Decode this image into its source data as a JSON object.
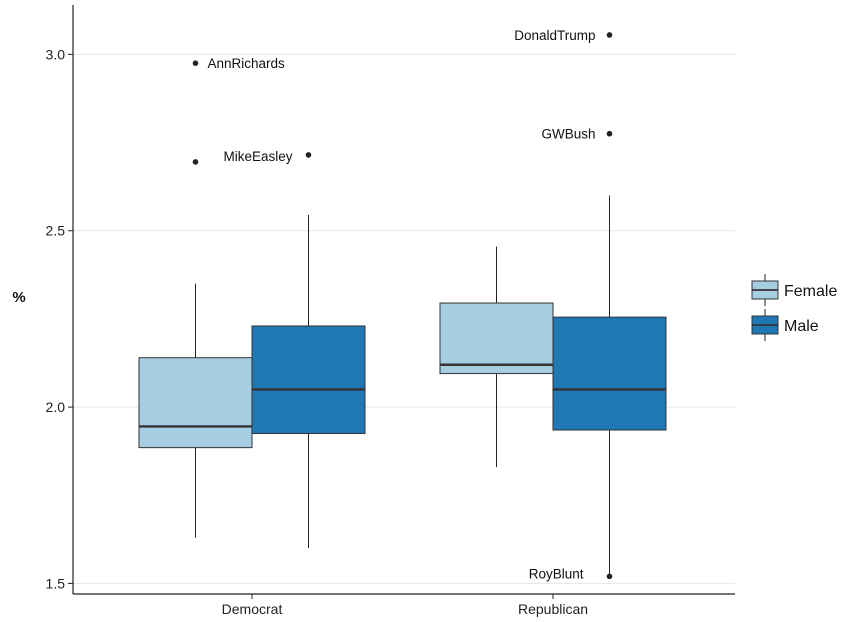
{
  "chart_data": {
    "type": "boxplot",
    "ylabel": "%",
    "xlabel": "",
    "ylim": [
      1.47,
      3.14
    ],
    "yticks": [
      1.5,
      2.0,
      2.5,
      3.0
    ],
    "ytick_labels": [
      "1.5",
      "2.0",
      "2.5",
      "3.0"
    ],
    "grid": true,
    "legend_position": "right",
    "categories": [
      "Democrat",
      "Republican"
    ],
    "series": [
      {
        "name": "Female",
        "color": "#a6cee3",
        "boxes": [
          {
            "category": "Democrat",
            "whisker_low": 1.63,
            "q1": 1.885,
            "median": 1.945,
            "q3": 2.14,
            "whisker_high": 2.35
          },
          {
            "category": "Republican",
            "whisker_low": 1.83,
            "q1": 2.095,
            "median": 2.12,
            "q3": 2.295,
            "whisker_high": 2.455
          }
        ],
        "outliers": [
          {
            "category": "Democrat",
            "y": 2.975,
            "label": "AnnRichards"
          },
          {
            "category": "Democrat",
            "y": 2.695,
            "label": ""
          }
        ]
      },
      {
        "name": "Male",
        "color": "#1f78b4",
        "boxes": [
          {
            "category": "Democrat",
            "whisker_low": 1.6,
            "q1": 1.925,
            "median": 2.05,
            "q3": 2.23,
            "whisker_high": 2.545
          },
          {
            "category": "Republican",
            "whisker_low": 1.52,
            "q1": 1.935,
            "median": 2.05,
            "q3": 2.255,
            "whisker_high": 2.6
          }
        ],
        "outliers": [
          {
            "category": "Democrat",
            "y": 2.715,
            "label": "MikeEasley"
          },
          {
            "category": "Republican",
            "y": 3.055,
            "label": "DonaldTrump"
          },
          {
            "category": "Republican",
            "y": 2.775,
            "label": "GWBush"
          },
          {
            "category": "Republican",
            "y": 1.52,
            "label": "RoyBlunt"
          }
        ]
      }
    ]
  }
}
